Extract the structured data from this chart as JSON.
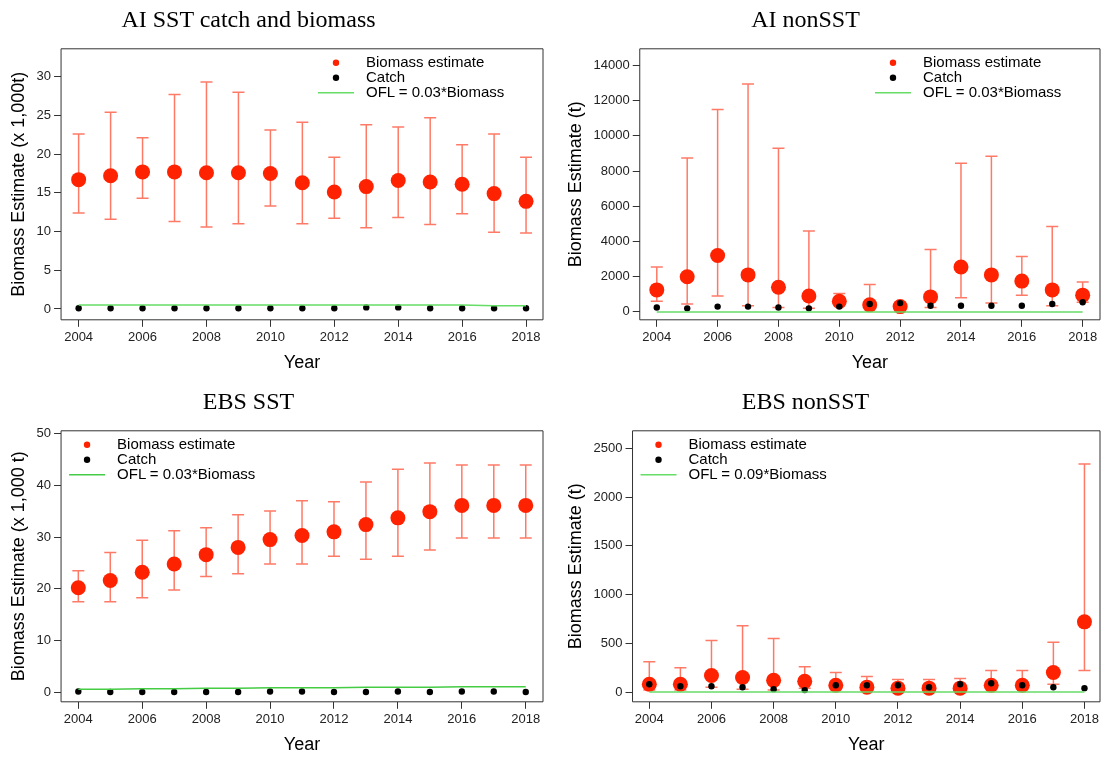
{
  "chart_data": [
    {
      "type": "scatter",
      "title": "AI SST catch and biomass",
      "xlabel": "Year",
      "ylabel": "Biomass Estimate (x 1,000t)",
      "x": [
        2004,
        2005,
        2006,
        2007,
        2008,
        2009,
        2010,
        2011,
        2012,
        2013,
        2014,
        2015,
        2016,
        2017,
        2018
      ],
      "xlim": [
        2003.45,
        2018.53
      ],
      "xticks": [
        2004,
        2006,
        2008,
        2010,
        2012,
        2014,
        2016,
        2018
      ],
      "ylim": [
        -1.4,
        33.6
      ],
      "yticks": [
        0,
        5,
        10,
        15,
        20,
        25,
        30
      ],
      "grid": false,
      "legend": "top right",
      "series": [
        {
          "name": "Biomass estimate",
          "color": "#ff2200",
          "marker": "circle",
          "values": [
            16.7,
            17.2,
            17.7,
            17.7,
            17.6,
            17.6,
            17.5,
            16.3,
            15.1,
            15.8,
            16.6,
            16.4,
            16.1,
            14.9,
            13.9
          ],
          "errors": [
            [
              12.4,
              22.6
            ],
            [
              11.6,
              25.4
            ],
            [
              14.3,
              22.1
            ],
            [
              11.3,
              27.7
            ],
            [
              10.6,
              29.3
            ],
            [
              11.0,
              28.0
            ],
            [
              13.3,
              23.1
            ],
            [
              11.0,
              24.1
            ],
            [
              11.7,
              19.6
            ],
            [
              10.5,
              23.8
            ],
            [
              11.8,
              23.5
            ],
            [
              10.9,
              24.7
            ],
            [
              12.3,
              21.2
            ],
            [
              9.9,
              22.6
            ],
            [
              9.8,
              19.6
            ]
          ]
        },
        {
          "name": "Catch",
          "color": "#000000",
          "marker": "circle",
          "values": [
            0.1,
            0.1,
            0.1,
            0.1,
            0.1,
            0.1,
            0.1,
            0.1,
            0.1,
            0.2,
            0.2,
            0.1,
            0.1,
            0.1,
            0.1
          ]
        },
        {
          "name": "OFL = 0.03*Biomass",
          "type": "line",
          "marker": "none",
          "color": "#66dd66",
          "values": [
            0.5,
            0.5,
            0.5,
            0.5,
            0.5,
            0.5,
            0.5,
            0.5,
            0.5,
            0.5,
            0.5,
            0.5,
            0.5,
            0.4,
            0.4
          ]
        }
      ]
    },
    {
      "type": "scatter",
      "title": "AI nonSST",
      "xlabel": "Year",
      "ylabel": "Biomass Estimate (t)",
      "x": [
        2004,
        2005,
        2006,
        2007,
        2008,
        2009,
        2010,
        2011,
        2012,
        2013,
        2014,
        2015,
        2016,
        2017,
        2018
      ],
      "xlim": [
        2003.44,
        2018.57
      ],
      "xticks": [
        2004,
        2006,
        2008,
        2010,
        2012,
        2014,
        2016,
        2018
      ],
      "ylim": [
        -450,
        14950
      ],
      "yticks": [
        0,
        2000,
        4000,
        6000,
        8000,
        10000,
        12000,
        14000
      ],
      "grid": false,
      "legend": "top right",
      "series": [
        {
          "name": "Biomass estimate",
          "color": "#ff2200",
          "marker": "circle",
          "values": [
            1250,
            2000,
            3200,
            2100,
            1400,
            900,
            600,
            400,
            300,
            850,
            2550,
            2100,
            1750,
            1250,
            950
          ],
          "errors": [
            [
              600,
              2550
            ],
            [
              450,
              8750
            ],
            [
              900,
              11500
            ],
            [
              350,
              12950
            ],
            [
              250,
              9300
            ],
            [
              200,
              4600
            ],
            [
              450,
              1050
            ],
            [
              200,
              1550
            ],
            [
              150,
              500
            ],
            [
              250,
              3550
            ],
            [
              800,
              8450
            ],
            [
              500,
              8850
            ],
            [
              950,
              3150
            ],
            [
              350,
              4850
            ],
            [
              550,
              1700
            ]
          ]
        },
        {
          "name": "Catch",
          "color": "#000000",
          "marker": "circle",
          "values": [
            250,
            200,
            300,
            300,
            250,
            200,
            300,
            450,
            500,
            350,
            350,
            350,
            350,
            450,
            550
          ]
        },
        {
          "name": "OFL = 0.03*Biomass",
          "type": "line",
          "marker": "none",
          "color": "#66dd66",
          "values": [
            0,
            0,
            0,
            0,
            0,
            0,
            0,
            0,
            0,
            0,
            0,
            0,
            0,
            0,
            0
          ]
        }
      ]
    },
    {
      "type": "scatter",
      "title": "EBS SST",
      "xlabel": "Year",
      "ylabel": "Biomass Estimate (x 1,000 t)",
      "x": [
        2004,
        2005,
        2006,
        2007,
        2008,
        2009,
        2010,
        2011,
        2012,
        2013,
        2014,
        2015,
        2016,
        2017,
        2018
      ],
      "xlim": [
        2003.46,
        2018.54
      ],
      "xticks": [
        2004,
        2006,
        2008,
        2010,
        2012,
        2014,
        2016,
        2018
      ],
      "ylim": [
        -1.8,
        50.5
      ],
      "yticks": [
        0,
        10,
        20,
        30,
        40,
        50
      ],
      "grid": false,
      "legend": "top left",
      "series": [
        {
          "name": "Biomass estimate",
          "color": "#ff2200",
          "marker": "circle",
          "values": [
            20.2,
            21.6,
            23.2,
            24.8,
            26.6,
            28.0,
            29.5,
            30.3,
            31.0,
            32.4,
            33.7,
            34.9,
            36.1,
            36.1,
            36.1
          ],
          "errors": [
            [
              17.5,
              23.5
            ],
            [
              17.5,
              27.0
            ],
            [
              18.3,
              29.4
            ],
            [
              19.8,
              31.2
            ],
            [
              22.4,
              31.8
            ],
            [
              22.9,
              34.3
            ],
            [
              24.8,
              35.0
            ],
            [
              24.8,
              37.0
            ],
            [
              26.3,
              36.8
            ],
            [
              25.7,
              40.6
            ],
            [
              26.3,
              43.1
            ],
            [
              27.5,
              44.3
            ],
            [
              29.8,
              43.9
            ],
            [
              29.8,
              43.9
            ],
            [
              29.8,
              43.9
            ]
          ]
        },
        {
          "name": "Catch",
          "color": "#000000",
          "marker": "circle",
          "values": [
            0.2,
            0.1,
            0.1,
            0.1,
            0.1,
            0.1,
            0.2,
            0.2,
            0.1,
            0.1,
            0.2,
            0.1,
            0.2,
            0.2,
            0.1
          ]
        },
        {
          "name": "OFL = 0.03*Biomass",
          "type": "line",
          "marker": "none",
          "color": "#44cc44",
          "values": [
            0.6,
            0.6,
            0.7,
            0.7,
            0.8,
            0.8,
            0.9,
            0.9,
            0.9,
            1.0,
            1.0,
            1.0,
            1.1,
            1.1,
            1.1
          ]
        }
      ]
    },
    {
      "type": "scatter",
      "title": "EBS nonSST",
      "xlabel": "Year",
      "ylabel": "Biomass Estimate (t)",
      "x": [
        2004,
        2005,
        2006,
        2007,
        2008,
        2009,
        2010,
        2011,
        2012,
        2013,
        2014,
        2015,
        2016,
        2017,
        2018
      ],
      "xlim": [
        2003.46,
        2018.5
      ],
      "xticks": [
        2004,
        2006,
        2008,
        2010,
        2012,
        2014,
        2016,
        2018
      ],
      "ylim": [
        -100,
        2680
      ],
      "yticks": [
        0,
        500,
        1000,
        1500,
        2000,
        2500
      ],
      "grid": false,
      "legend": "top left",
      "series": [
        {
          "name": "Biomass estimate",
          "color": "#ff2200",
          "marker": "circle",
          "values": [
            80,
            80,
            170,
            150,
            120,
            110,
            70,
            50,
            40,
            40,
            40,
            70,
            70,
            200,
            720
          ],
          "errors": [
            [
              20,
              310
            ],
            [
              20,
              250
            ],
            [
              50,
              530
            ],
            [
              30,
              680
            ],
            [
              20,
              550
            ],
            [
              40,
              260
            ],
            [
              30,
              200
            ],
            [
              20,
              160
            ],
            [
              20,
              130
            ],
            [
              20,
              130
            ],
            [
              20,
              140
            ],
            [
              40,
              220
            ],
            [
              30,
              220
            ],
            [
              80,
              510
            ],
            [
              220,
              2340
            ]
          ]
        },
        {
          "name": "Catch",
          "color": "#000000",
          "marker": "circle",
          "values": [
            80,
            60,
            60,
            50,
            30,
            20,
            70,
            70,
            70,
            50,
            80,
            90,
            70,
            50,
            40
          ]
        },
        {
          "name": "OFL = 0.09*Biomass",
          "type": "line",
          "marker": "none",
          "color": "#66dd66",
          "values": [
            0,
            0,
            0,
            0,
            0,
            0,
            0,
            0,
            0,
            0,
            0,
            0,
            0,
            0,
            0
          ]
        }
      ]
    }
  ]
}
